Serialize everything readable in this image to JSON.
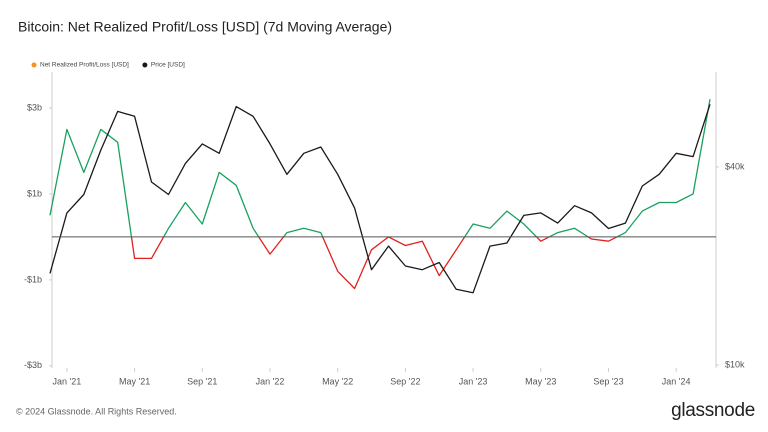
{
  "chart_data": {
    "type": "line",
    "title": "Bitcoin: Net Realized Profit/Loss [USD] (7d Moving Average)",
    "x": [
      "2020-12",
      "2021-01",
      "2021-02",
      "2021-03",
      "2021-04",
      "2021-05",
      "2021-06",
      "2021-07",
      "2021-08",
      "2021-09",
      "2021-10",
      "2021-11",
      "2021-12",
      "2022-01",
      "2022-02",
      "2022-03",
      "2022-04",
      "2022-05",
      "2022-06",
      "2022-07",
      "2022-08",
      "2022-09",
      "2022-10",
      "2022-11",
      "2022-12",
      "2023-01",
      "2023-02",
      "2023-03",
      "2023-04",
      "2023-05",
      "2023-06",
      "2023-07",
      "2023-08",
      "2023-09",
      "2023-10",
      "2023-11",
      "2023-12",
      "2024-01",
      "2024-02",
      "2024-03"
    ],
    "xlim": [
      "2020-12",
      "2024-03"
    ],
    "xticks": [
      {
        "value": "2021-01",
        "label": "Jan '21"
      },
      {
        "value": "2021-05",
        "label": "May '21"
      },
      {
        "value": "2021-09",
        "label": "Sep '21"
      },
      {
        "value": "2022-01",
        "label": "Jan '22"
      },
      {
        "value": "2022-05",
        "label": "May '22"
      },
      {
        "value": "2022-09",
        "label": "Sep '22"
      },
      {
        "value": "2023-01",
        "label": "Jan '23"
      },
      {
        "value": "2023-05",
        "label": "May '23"
      },
      {
        "value": "2023-09",
        "label": "Sep '23"
      },
      {
        "value": "2024-01",
        "label": "Jan '24"
      }
    ],
    "ylim": [
      -3050000000,
      3650000000
    ],
    "yticks": [
      {
        "value": 3000000000,
        "label": "$3b"
      },
      {
        "value": 1000000000,
        "label": "$1b"
      },
      {
        "value": -1000000000,
        "label": "-$1b"
      },
      {
        "value": -3000000000,
        "label": "-$3b"
      }
    ],
    "y2lim": [
      9800,
      73500
    ],
    "y2scale": "log",
    "y2ticks": [
      {
        "value": 40000,
        "label": "$40k"
      },
      {
        "value": 10000,
        "label": "$10k"
      }
    ],
    "grid": false,
    "legend": "top-left",
    "profit_color": "#19a15f",
    "loss_color": "#e0211d",
    "series": [
      {
        "name": "Net Realized Profit/Loss [USD]",
        "color": "#f7931a",
        "values": [
          500000000,
          2500000000,
          1500000000,
          2500000000,
          2200000000,
          -500000000,
          -500000000,
          200000000,
          800000000,
          300000000,
          1500000000,
          1200000000,
          200000000,
          -400000000,
          100000000,
          200000000,
          100000000,
          -800000000,
          -1200000000,
          -300000000,
          0,
          -200000000,
          -100000000,
          -900000000,
          -300000000,
          300000000,
          200000000,
          600000000,
          300000000,
          -100000000,
          100000000,
          200000000,
          -50000000,
          -100000000,
          100000000,
          600000000,
          800000000,
          800000000,
          1000000000,
          3200000000
        ]
      },
      {
        "name": "Price [USD]",
        "color": "#1a1a1a",
        "axis": "y2",
        "values": [
          19000,
          29000,
          33000,
          45000,
          59000,
          57000,
          36000,
          33000,
          41000,
          47000,
          44000,
          61000,
          57000,
          47000,
          38000,
          44000,
          46000,
          38000,
          30000,
          19500,
          23000,
          20000,
          19500,
          20500,
          17000,
          16600,
          23000,
          23500,
          28500,
          29000,
          27000,
          30500,
          29000,
          26000,
          27000,
          35000,
          38000,
          44000,
          43000,
          62000
        ]
      }
    ]
  },
  "footer": {
    "copyright": "© 2024 Glassnode. All Rights Reserved.",
    "brand": "glassnode"
  }
}
